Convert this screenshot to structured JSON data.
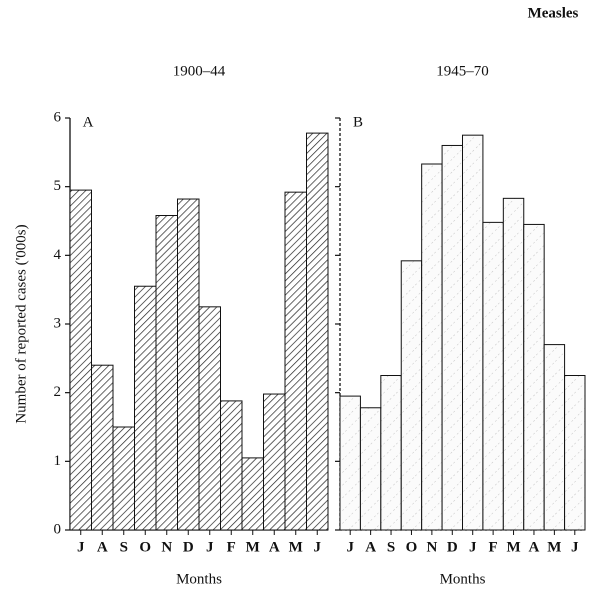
{
  "title": "Measles",
  "chart_data": [
    {
      "type": "bar",
      "title": "1900–44",
      "panel_label": "A",
      "ylabel": "Number of reported cases ('000s)",
      "xlabel": "Months",
      "categories": [
        "J",
        "A",
        "S",
        "O",
        "N",
        "D",
        "J",
        "F",
        "M",
        "A",
        "M",
        "J"
      ],
      "values": [
        4.95,
        2.4,
        1.5,
        3.55,
        4.58,
        4.82,
        3.25,
        1.88,
        1.05,
        1.98,
        4.92,
        5.78
      ],
      "ylim": [
        0,
        6
      ],
      "yticks": [
        0,
        1,
        2,
        3,
        4,
        5,
        6
      ],
      "pattern": "dense-hatch"
    },
    {
      "type": "bar",
      "title": "1945–70",
      "panel_label": "B",
      "xlabel": "Months",
      "categories": [
        "J",
        "A",
        "S",
        "O",
        "N",
        "D",
        "J",
        "F",
        "M",
        "A",
        "M",
        "J"
      ],
      "values": [
        1.95,
        1.78,
        2.25,
        3.92,
        5.33,
        5.6,
        5.75,
        4.48,
        4.83,
        4.45,
        2.7,
        2.25
      ],
      "ylim": [
        0,
        6
      ],
      "yticks": [
        0,
        1,
        2,
        3,
        4,
        5,
        6
      ],
      "pattern": "light-hatch"
    }
  ]
}
